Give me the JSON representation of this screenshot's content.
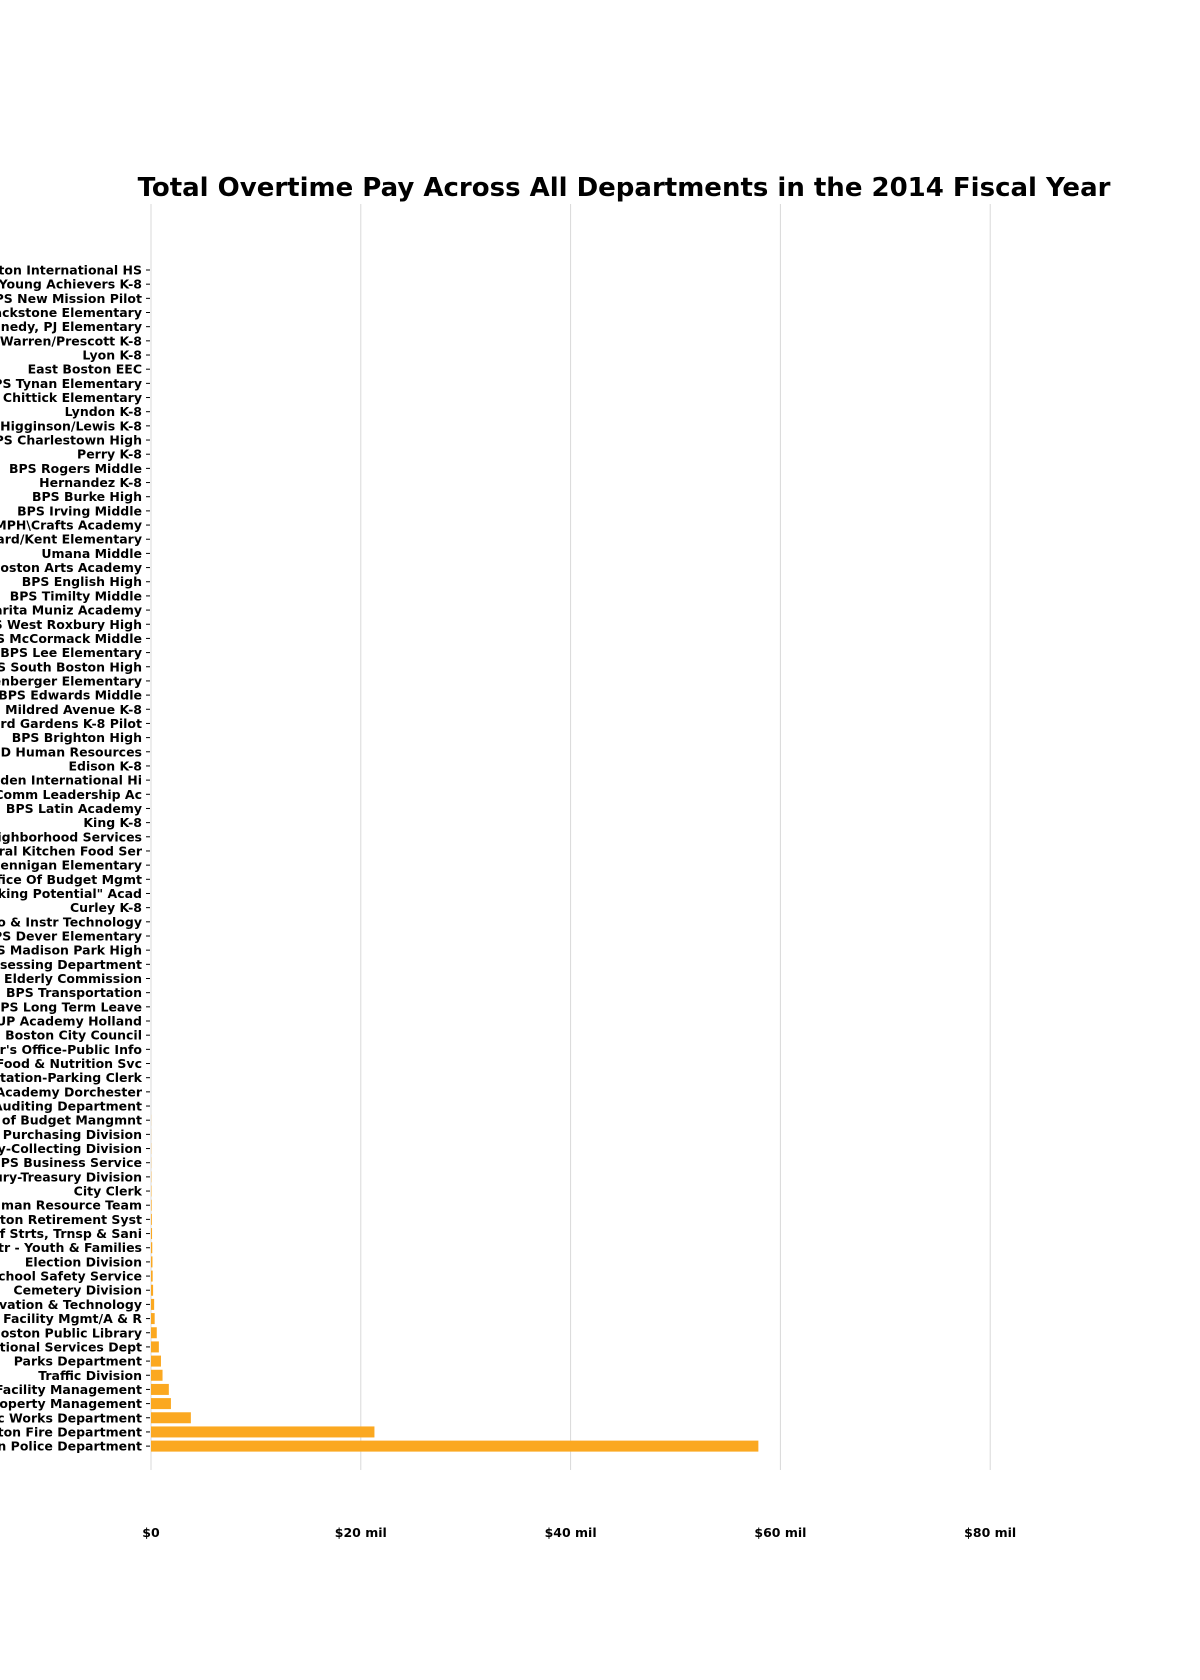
{
  "colors": {
    "bar": "#FBA820",
    "grid": "#d9d9d9",
    "text": "#000000",
    "background": "#ffffff"
  },
  "chart_data": {
    "type": "bar",
    "orientation": "horizontal",
    "title": "Total Overtime Pay Across All Departments in the 2014 Fiscal Year",
    "xlabel": "",
    "ylabel": "",
    "grid": true,
    "xlim": [
      0,
      90
    ],
    "x_ticks": [
      {
        "value": 0,
        "label": "$0"
      },
      {
        "value": 20,
        "label": "$20 mil"
      },
      {
        "value": 40,
        "label": "$40 mil"
      },
      {
        "value": 60,
        "label": "$60 mil"
      },
      {
        "value": 80,
        "label": "$80 mil"
      }
    ],
    "value_unit": "millions of dollars",
    "categories": [
      "ston International HS",
      "Young Achievers K-8",
      "PS New Mission Pilot",
      "ackstone Elementary",
      "nnedy, PJ Elementary",
      "Warren/Prescott K-8",
      "Lyon K-8",
      "East Boston EEC",
      "PS Tynan Elementary",
      "S Chittick Elementary",
      "Lyndon K-8",
      "Higginson/Lewis K-8",
      "PS Charlestown High",
      "Perry K-8",
      "BPS Rogers Middle",
      "Hernandez K-8",
      "BPS Burke High",
      "BPS Irving Middle",
      "MPH\\Crafts Academy",
      "ard/Kent Elementary",
      "Umana Middle",
      "Boston Arts Academy",
      "BPS English High",
      "BPS Timilty Middle",
      "arita Muniz Academy",
      "S West Roxbury High",
      "S McCormack Middle",
      "BPS Lee Elementary",
      "PS South Boston High",
      "renberger Elementary",
      "BPS Edwards Middle",
      "Mildred Avenue K-8",
      "ard Gardens K-8 Pilot",
      "BPS Brighton High",
      "SD Human Resources",
      "Edison K-8",
      "wden International Hi",
      "Comm Leadership Ac",
      "BPS Latin Academy",
      "King K-8",
      "eighborhood Services",
      "tral Kitchen Food Ser",
      "Hennigan Elementary",
      "ffice Of Budget Mgmt",
      "cking Potential\" Acad",
      "Curley K-8",
      "fo & Instr Technology",
      "PS Dever Elementary",
      "PS Madison Park High",
      "ssessing Department",
      "Elderly Commission",
      "BPS Transportation",
      "BPS Long Term Leave",
      "UP Academy Holland",
      "Boston City Council",
      "r's Office-Public Info",
      "Food & Nutrition Svc",
      "rtation-Parking Clerk",
      "Academy Dorchester",
      "Auditing Department",
      "e of Budget Mangmnt",
      "Purchasing Division",
      "ry-Collecting Division",
      "BPS Business Service",
      "ury-Treasury Division",
      "City Clerk",
      "uman Resource Team",
      "ston Retirement Syst",
      "of Strts, Trnsp & Sani",
      "ntr - Youth & Families",
      "Election Division",
      "School Safety Service",
      "Cemetery Division",
      "ovation & Technology",
      "Facility Mgmt/A & R",
      "Boston Public Library",
      "ctional Services Dept",
      "Parks Department",
      "Traffic Division",
      "Facility Management",
      "roperty Management",
      "c Works Department",
      "ston Fire Department",
      "on Police Department"
    ],
    "values": [
      0.0,
      0.0,
      0.0,
      0.0,
      0.0,
      0.0,
      0.0,
      0.0,
      0.0,
      0.0,
      0.0,
      0.0,
      0.0,
      0.0,
      0.0,
      0.0,
      0.0,
      0.0,
      0.0,
      0.0,
      0.0,
      0.0,
      0.0,
      0.0,
      0.0,
      0.0,
      0.0,
      0.0,
      0.0,
      0.0,
      0.0,
      0.0,
      0.0,
      0.0,
      0.0,
      0.0,
      0.0,
      0.0,
      0.0,
      0.0,
      0.0,
      0.0,
      0.0,
      0.0,
      0.0,
      0.0,
      0.0,
      0.0,
      0.0,
      0.0,
      0.0,
      0.0,
      0.0,
      0.0,
      0.0,
      0.0,
      0.0,
      0.0,
      0.0,
      0.0,
      0.01,
      0.01,
      0.02,
      0.02,
      0.03,
      0.04,
      0.06,
      0.08,
      0.1,
      0.12,
      0.14,
      0.16,
      0.2,
      0.3,
      0.35,
      0.55,
      0.75,
      0.95,
      1.1,
      1.7,
      1.9,
      3.8,
      21.3,
      57.9
    ]
  }
}
